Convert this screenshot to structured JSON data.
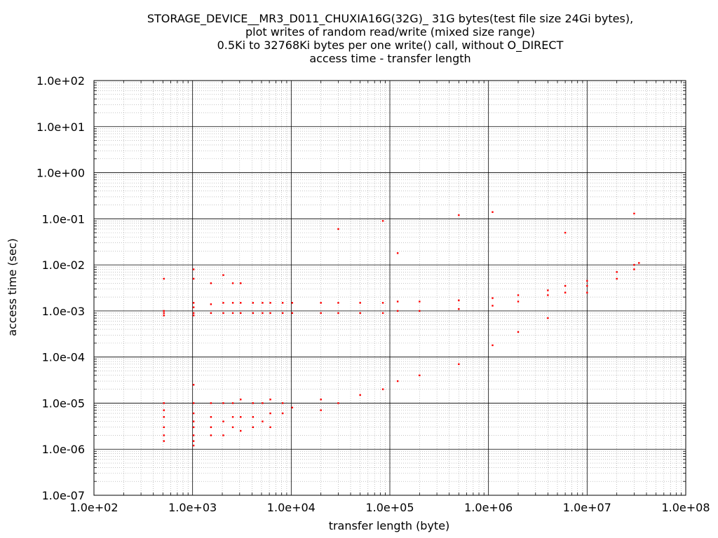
{
  "chart_data": {
    "type": "scatter",
    "title_lines": [
      "STORAGE_DEVICE__MR3_D011_CHUXIA16G(32G)_ 31G bytes(test file size 24Gi bytes),",
      "plot writes of random read/write (mixed size range)",
      "0.5Ki to 32768Ki bytes per one write() call, without O_DIRECT",
      "access time - transfer length"
    ],
    "xlabel": "transfer length (byte)",
    "ylabel": "access time (sec)",
    "x_scale": "log",
    "y_scale": "log",
    "xlim": [
      100,
      100000000
    ],
    "ylim": [
      1e-07,
      100
    ],
    "x_ticks": [
      {
        "value": 100,
        "label": "1.0e+02"
      },
      {
        "value": 1000,
        "label": "1.0e+03"
      },
      {
        "value": 10000,
        "label": "1.0e+04"
      },
      {
        "value": 100000,
        "label": "1.0e+05"
      },
      {
        "value": 1000000,
        "label": "1.0e+06"
      },
      {
        "value": 10000000,
        "label": "1.0e+07"
      },
      {
        "value": 100000000,
        "label": "1.0e+08"
      }
    ],
    "y_ticks": [
      {
        "value": 1e-07,
        "label": "1.0e-07"
      },
      {
        "value": 1e-06,
        "label": "1.0e-06"
      },
      {
        "value": 1e-05,
        "label": "1.0e-05"
      },
      {
        "value": 0.0001,
        "label": "1.0e-04"
      },
      {
        "value": 0.001,
        "label": "1.0e-03"
      },
      {
        "value": 0.01,
        "label": "1.0e-02"
      },
      {
        "value": 0.1,
        "label": "1.0e-01"
      },
      {
        "value": 1,
        "label": "1.0e+00"
      },
      {
        "value": 10,
        "label": "1.0e+01"
      },
      {
        "value": 100,
        "label": "1.0e+02"
      }
    ],
    "grid": true,
    "marker_color": "#ff0000",
    "series": [
      {
        "points": [
          [
            512,
            0.0009
          ],
          [
            512,
            0.0008
          ],
          [
            512,
            0.001
          ],
          [
            512,
            0.005
          ],
          [
            512,
            1e-05
          ],
          [
            512,
            5e-06
          ],
          [
            512,
            3e-06
          ],
          [
            512,
            2e-06
          ],
          [
            512,
            1.5e-06
          ],
          [
            512,
            7e-06
          ],
          [
            1024,
            0.0015
          ],
          [
            1024,
            0.0012
          ],
          [
            1024,
            0.0009
          ],
          [
            1024,
            0.0008
          ],
          [
            1024,
            0.008
          ],
          [
            1024,
            0.005
          ],
          [
            1024,
            2.5e-05
          ],
          [
            1024,
            1e-05
          ],
          [
            1024,
            6e-06
          ],
          [
            1024,
            4e-06
          ],
          [
            1024,
            3e-06
          ],
          [
            1024,
            2e-06
          ],
          [
            1024,
            1.5e-06
          ],
          [
            1024,
            1.2e-06
          ],
          [
            1536,
            0.0014
          ],
          [
            1536,
            0.0009
          ],
          [
            1536,
            0.004
          ],
          [
            1536,
            1e-05
          ],
          [
            1536,
            5e-06
          ],
          [
            1536,
            3e-06
          ],
          [
            1536,
            2e-06
          ],
          [
            2048,
            0.0015
          ],
          [
            2048,
            0.0009
          ],
          [
            2048,
            0.006
          ],
          [
            2048,
            1e-05
          ],
          [
            2048,
            4e-06
          ],
          [
            2048,
            2e-06
          ],
          [
            2560,
            0.0015
          ],
          [
            2560,
            0.0009
          ],
          [
            2560,
            0.004
          ],
          [
            2560,
            1e-05
          ],
          [
            2560,
            5e-06
          ],
          [
            2560,
            3e-06
          ],
          [
            3072,
            0.0015
          ],
          [
            3072,
            0.0009
          ],
          [
            3072,
            0.004
          ],
          [
            3072,
            1.2e-05
          ],
          [
            3072,
            5e-06
          ],
          [
            3072,
            2.5e-06
          ],
          [
            4096,
            0.0015
          ],
          [
            4096,
            0.0009
          ],
          [
            4096,
            1e-05
          ],
          [
            4096,
            5e-06
          ],
          [
            4096,
            3e-06
          ],
          [
            5120,
            0.0015
          ],
          [
            5120,
            0.0009
          ],
          [
            5120,
            1e-05
          ],
          [
            5120,
            4e-06
          ],
          [
            6144,
            0.0015
          ],
          [
            6144,
            0.0009
          ],
          [
            6144,
            1.2e-05
          ],
          [
            6144,
            6e-06
          ],
          [
            6144,
            3e-06
          ],
          [
            8192,
            0.0015
          ],
          [
            8192,
            0.0009
          ],
          [
            8192,
            1e-05
          ],
          [
            8192,
            6e-06
          ],
          [
            10240,
            0.0015
          ],
          [
            10240,
            0.0009
          ],
          [
            10240,
            8e-06
          ],
          [
            20000,
            0.0015
          ],
          [
            20000,
            0.0009
          ],
          [
            20000,
            1.2e-05
          ],
          [
            20000,
            7e-06
          ],
          [
            30000,
            0.0015
          ],
          [
            30000,
            0.0009
          ],
          [
            30000,
            0.06
          ],
          [
            30000,
            1e-05
          ],
          [
            50000,
            0.0015
          ],
          [
            50000,
            0.0009
          ],
          [
            50000,
            1.5e-05
          ],
          [
            85000,
            0.0015
          ],
          [
            85000,
            0.0009
          ],
          [
            85000,
            0.09
          ],
          [
            85000,
            2e-05
          ],
          [
            120000,
            0.0016
          ],
          [
            120000,
            0.001
          ],
          [
            120000,
            0.018
          ],
          [
            120000,
            3e-05
          ],
          [
            200000,
            0.0016
          ],
          [
            200000,
            0.001
          ],
          [
            200000,
            4e-05
          ],
          [
            500000,
            0.0017
          ],
          [
            500000,
            0.0011
          ],
          [
            500000,
            0.12
          ],
          [
            500000,
            7e-05
          ],
          [
            1100000,
            0.0019
          ],
          [
            1100000,
            0.0013
          ],
          [
            1100000,
            0.14
          ],
          [
            1100000,
            0.00018
          ],
          [
            2000000,
            0.0022
          ],
          [
            2000000,
            0.0016
          ],
          [
            2000000,
            0.00035
          ],
          [
            4000000,
            0.0028
          ],
          [
            4000000,
            0.0022
          ],
          [
            4000000,
            0.0007
          ],
          [
            6000000,
            0.05
          ],
          [
            6000000,
            0.0035
          ],
          [
            6000000,
            0.0025
          ],
          [
            10000000,
            0.0045
          ],
          [
            10000000,
            0.0035
          ],
          [
            10000000,
            0.0025
          ],
          [
            20000000,
            0.007
          ],
          [
            20000000,
            0.005
          ],
          [
            30000000,
            0.13
          ],
          [
            30000000,
            0.01
          ],
          [
            30000000,
            0.008
          ],
          [
            33554432,
            0.011
          ]
        ]
      }
    ]
  }
}
